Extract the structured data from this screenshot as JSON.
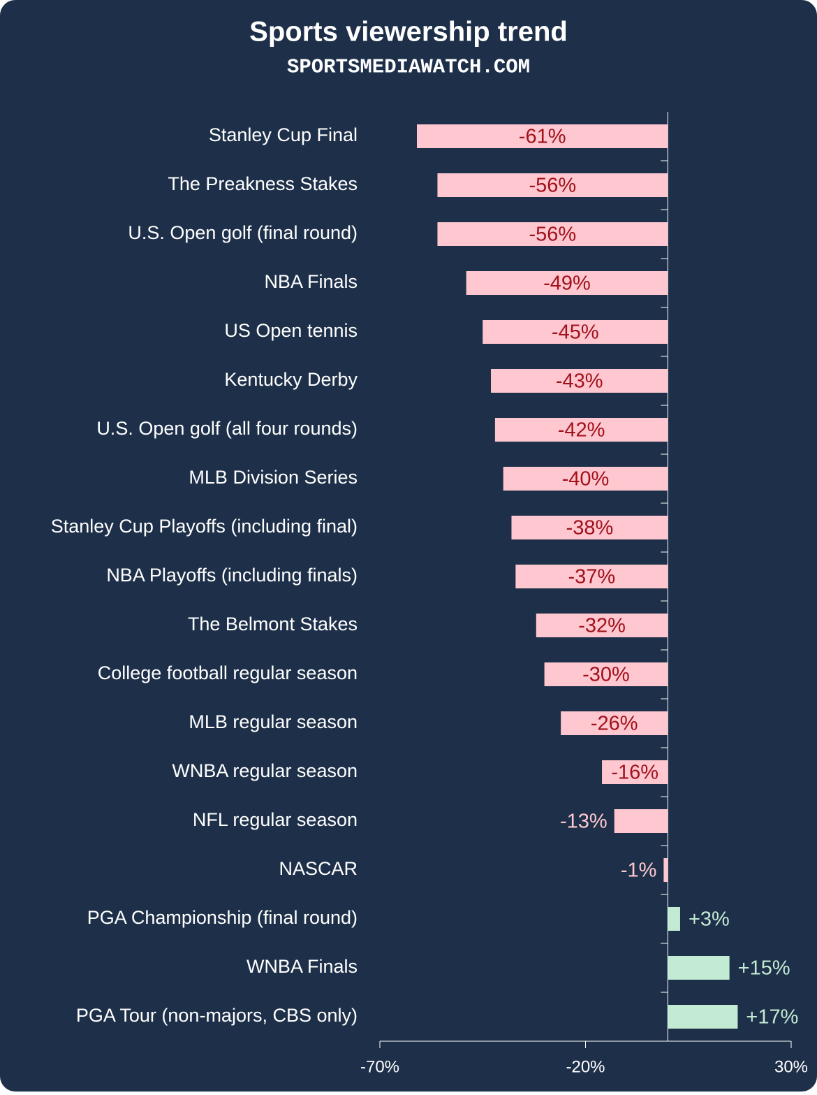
{
  "chart_data": {
    "type": "hbar",
    "title": "Sports viewership trend",
    "subtitle": "SPORTSMEDIAWATCH.COM",
    "categories": [
      "Stanley Cup Final",
      "The Preakness Stakes",
      "U.S. Open golf (final round)",
      "NBA Finals",
      "US Open tennis",
      "Kentucky Derby",
      "U.S. Open golf (all four rounds)",
      "MLB Division Series",
      "Stanley Cup Playoffs (including final)",
      "NBA Playoffs (including finals)",
      "The Belmont Stakes",
      "College football regular season",
      "MLB regular season",
      "WNBA regular season",
      "NFL regular season",
      "NASCAR",
      "PGA Championship (final round)",
      "WNBA Finals",
      "PGA Tour (non-majors, CBS only)"
    ],
    "values": [
      -61,
      -56,
      -56,
      -49,
      -45,
      -43,
      -42,
      -40,
      -38,
      -37,
      -32,
      -30,
      -26,
      -16,
      -13,
      -1,
      3,
      15,
      17
    ],
    "value_labels": [
      "-61%",
      "-56%",
      "-56%",
      "-49%",
      "-45%",
      "-43%",
      "-42%",
      "-40%",
      "-38%",
      "-37%",
      "-32%",
      "-30%",
      "-26%",
      "-16%",
      "-13%",
      "-1%",
      "+3%",
      "+15%",
      "+17%"
    ],
    "negative_color": "#ffc8d0",
    "positive_color": "#c3ead3",
    "inside_label_color": "#a0111b",
    "xlim": [
      -70,
      30
    ],
    "xticks": [
      {
        "value": -70,
        "label": "-70%"
      },
      {
        "value": -20,
        "label": "-20%"
      },
      {
        "value": 30,
        "label": "30%"
      }
    ]
  }
}
